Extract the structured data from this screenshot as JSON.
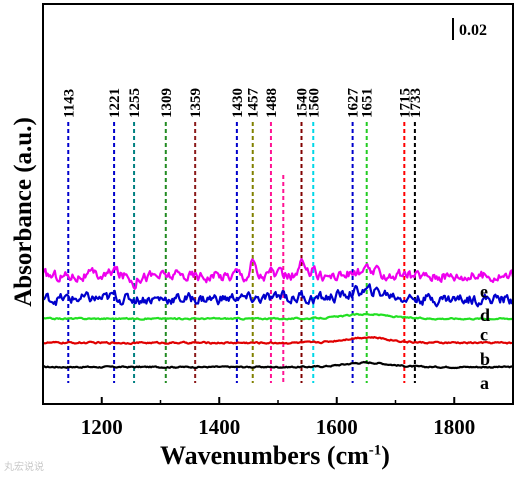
{
  "chart_data": {
    "type": "line",
    "title": "",
    "xlabel": "Wavenumbers",
    "xlabel_unit_base": "cm",
    "xlabel_unit_exp": "-1",
    "ylabel": "Absorbance (a.u.)",
    "xlim": [
      1100,
      1900
    ],
    "x_ticks": [
      "1200",
      "1400",
      "1600",
      "1800"
    ],
    "y_ticks_shown": false,
    "scale_bar_label": "0.02",
    "grid": false,
    "legend": "none",
    "series": [
      {
        "name": "a",
        "color": "#000000",
        "baseline": 0.0,
        "noise": 0.0006,
        "peaks": [
          {
            "x": 1651,
            "h": 0.004,
            "w": 38
          }
        ]
      },
      {
        "name": "b",
        "color": "#e00000",
        "baseline": 0.022,
        "noise": 0.0007,
        "peaks": [
          {
            "x": 1651,
            "h": 0.005,
            "w": 38
          }
        ]
      },
      {
        "name": "c",
        "color": "#22e022",
        "baseline": 0.044,
        "noise": 0.0006,
        "peaks": [
          {
            "x": 1651,
            "h": 0.004,
            "w": 38
          }
        ]
      },
      {
        "name": "d",
        "color": "#0000cc",
        "baseline": 0.062,
        "noise": 0.0045,
        "peaks": [
          {
            "x": 1221,
            "h": 0.003,
            "w": 5
          },
          {
            "x": 1430,
            "h": 0.002,
            "w": 5
          },
          {
            "x": 1509,
            "h": 0.006,
            "w": 4
          },
          {
            "x": 1540,
            "h": 0.004,
            "w": 4
          },
          {
            "x": 1651,
            "h": 0.007,
            "w": 35
          }
        ]
      },
      {
        "name": "e",
        "color": "#ee00ee",
        "baseline": 0.083,
        "noise": 0.0045,
        "peaks": [
          {
            "x": 1221,
            "h": 0.006,
            "w": 5
          },
          {
            "x": 1255,
            "h": -0.006,
            "w": 4
          },
          {
            "x": 1430,
            "h": 0.004,
            "w": 5
          },
          {
            "x": 1457,
            "h": 0.014,
            "w": 4
          },
          {
            "x": 1488,
            "h": 0.004,
            "w": 4
          },
          {
            "x": 1540,
            "h": 0.014,
            "w": 3
          },
          {
            "x": 1560,
            "h": 0.012,
            "w": 3
          },
          {
            "x": 1651,
            "h": 0.004,
            "w": 20
          }
        ]
      }
    ],
    "marker_lines": [
      {
        "x": 1143,
        "label": "1143",
        "color": "#0000cc"
      },
      {
        "x": 1221,
        "label": "1221",
        "color": "#0000cc"
      },
      {
        "x": 1255,
        "label": "1255",
        "color": "#008080"
      },
      {
        "x": 1309,
        "label": "1309",
        "color": "#228b22"
      },
      {
        "x": 1359,
        "label": "1359",
        "color": "#8b1a1a"
      },
      {
        "x": 1430,
        "label": "1430",
        "color": "#0000cc"
      },
      {
        "x": 1457,
        "label": "1457",
        "color": "#808000"
      },
      {
        "x": 1488,
        "label": "1488",
        "color": "#ff1493"
      },
      {
        "x": 1509,
        "label": "",
        "color": "#ff1493"
      },
      {
        "x": 1540,
        "label": "1540",
        "color": "#800000"
      },
      {
        "x": 1560,
        "label": "1560",
        "color": "#00d8e8"
      },
      {
        "x": 1627,
        "label": "1627",
        "color": "#0000cc"
      },
      {
        "x": 1651,
        "label": "1651",
        "color": "#22cc22"
      },
      {
        "x": 1715,
        "label": "1715",
        "color": "#ff0000"
      },
      {
        "x": 1733,
        "label": "1733",
        "color": "#000000"
      }
    ]
  },
  "watermark": "丸宏说说"
}
